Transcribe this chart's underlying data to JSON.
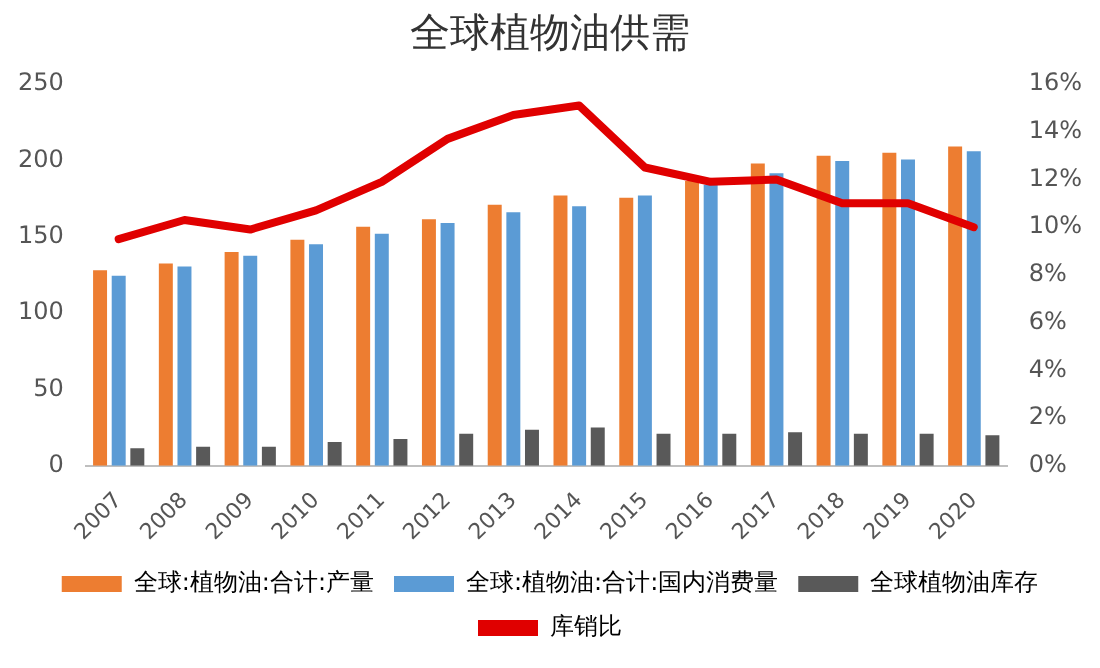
{
  "chart_data": {
    "type": "bar",
    "title": "全球植物油供需",
    "categories": [
      "2007",
      "2008",
      "2009",
      "2010",
      "2011",
      "2012",
      "2013",
      "2014",
      "2015",
      "2016",
      "2017",
      "2018",
      "2019",
      "2020"
    ],
    "series": [
      {
        "name": "全球:植物油:合计:产量",
        "color": "#ed7d31",
        "values": [
          128,
          132.5,
          140,
          148,
          156.5,
          161.5,
          171,
          177,
          175.5,
          186.5,
          198,
          203,
          205,
          209
        ]
      },
      {
        "name": "全球:植物油:合计:国内消费量",
        "color": "#5b9bd5",
        "values": [
          124.5,
          130.5,
          137.5,
          145,
          152,
          159,
          166,
          170,
          177,
          184,
          191.5,
          199.5,
          200.5,
          206
        ]
      },
      {
        "name": "全球植物油库存",
        "color": "#595959",
        "values": [
          11.5,
          12.5,
          12.5,
          15.5,
          17.5,
          21,
          23.5,
          25,
          21,
          21,
          22,
          21,
          21,
          20
        ]
      },
      {
        "name": "库销比",
        "type": "line",
        "axis": "y2",
        "color": "#e00000",
        "values": [
          9.5,
          10.3,
          9.9,
          10.7,
          11.9,
          13.7,
          14.7,
          15.1,
          12.5,
          11.9,
          12.0,
          11.0,
          11.0,
          10.0
        ]
      }
    ],
    "ylim": [
      0,
      250
    ],
    "yticks": [
      0,
      50,
      100,
      150,
      200,
      250
    ],
    "y2lim": [
      0,
      16
    ],
    "y2ticks": [
      {
        "value": 0,
        "label": "0%"
      },
      {
        "value": 2,
        "label": "2%"
      },
      {
        "value": 4,
        "label": "4%"
      },
      {
        "value": 6,
        "label": "6%"
      },
      {
        "value": 8,
        "label": "8%"
      },
      {
        "value": 10,
        "label": "10%"
      },
      {
        "value": 12,
        "label": "12%"
      },
      {
        "value": 14,
        "label": "14%"
      },
      {
        "value": 16,
        "label": "16%"
      }
    ],
    "grid": false,
    "legend": "bottom",
    "marker": "none"
  }
}
